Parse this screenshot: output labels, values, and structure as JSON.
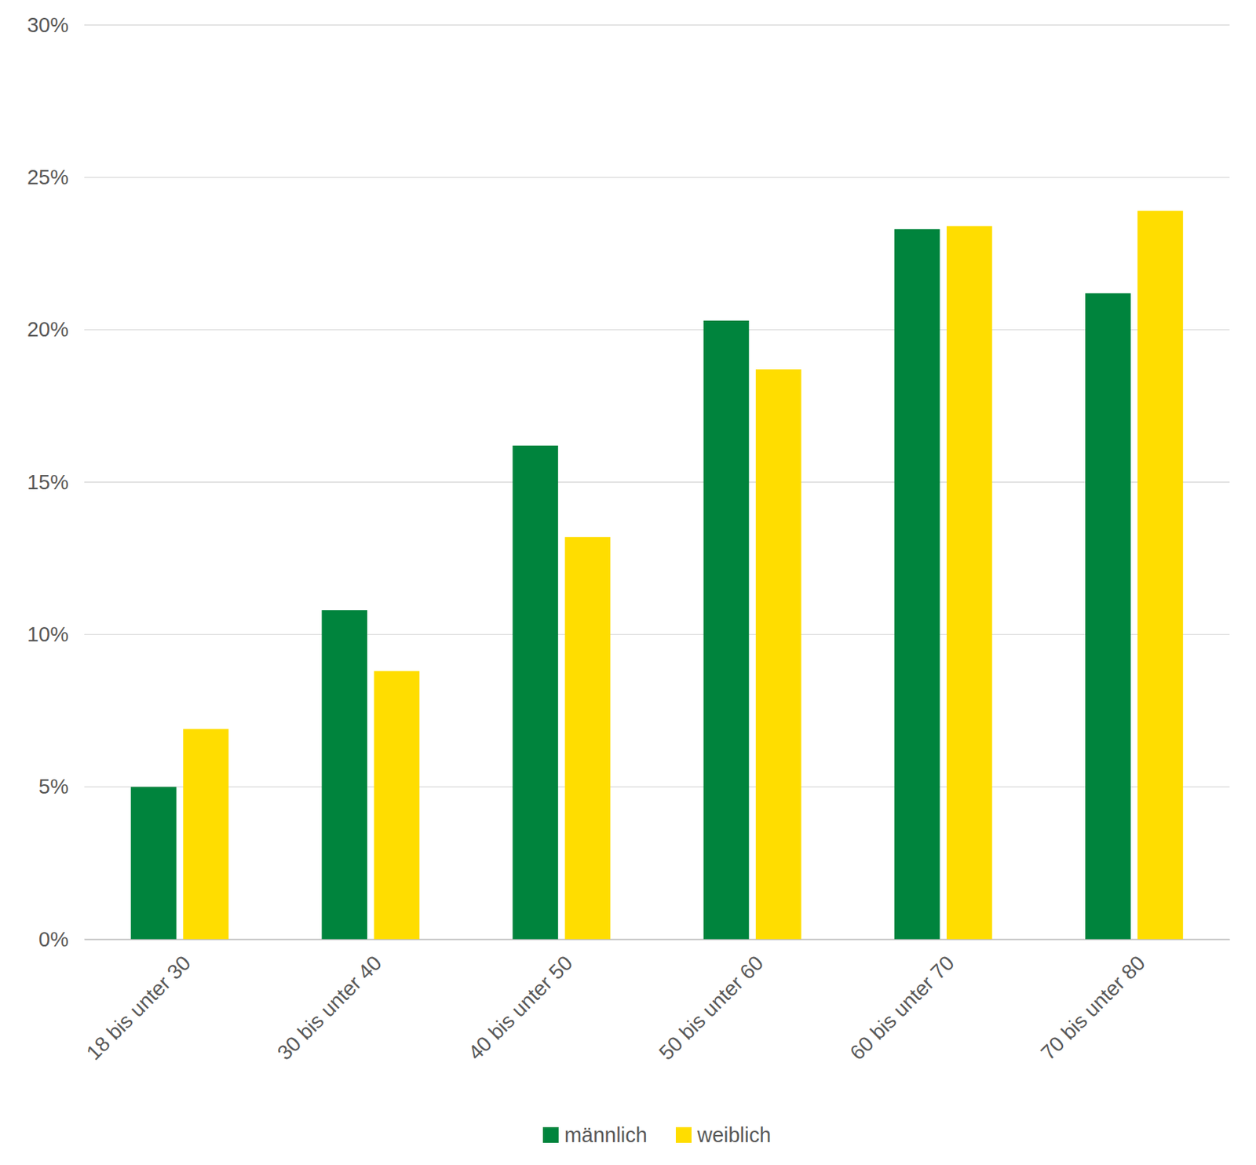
{
  "chart_data": {
    "type": "bar",
    "categories": [
      "18 bis unter 30",
      "30 bis unter 40",
      "40 bis unter 50",
      "50 bis unter 60",
      "60 bis unter 70",
      "70 bis unter 80"
    ],
    "series": [
      {
        "name": "männlich",
        "color": "#00843d",
        "values": [
          5.0,
          10.8,
          16.2,
          20.3,
          23.3,
          21.2
        ]
      },
      {
        "name": "weiblich",
        "color": "#ffdd00",
        "values": [
          6.9,
          8.8,
          13.2,
          18.7,
          23.4,
          23.9
        ]
      }
    ],
    "ylim": [
      0,
      30
    ],
    "yticks": [
      {
        "value": 0,
        "label": "0%"
      },
      {
        "value": 5,
        "label": "5%"
      },
      {
        "value": 10,
        "label": "10%"
      },
      {
        "value": 15,
        "label": "15%"
      },
      {
        "value": 20,
        "label": "20%"
      },
      {
        "value": 25,
        "label": "25%"
      },
      {
        "value": 30,
        "label": "30%"
      }
    ],
    "grid": true,
    "legend": "bottom"
  }
}
